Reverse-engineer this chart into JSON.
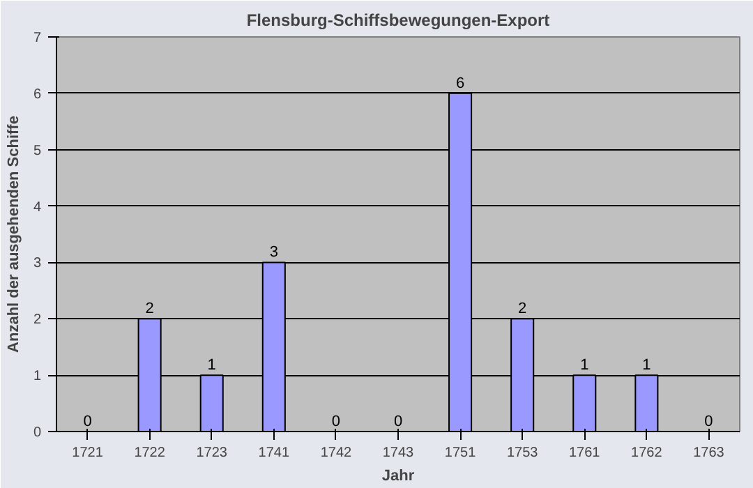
{
  "chart_data": {
    "type": "bar",
    "title": "Flensburg-Schiffsbewegungen-Export",
    "xlabel": "Jahr",
    "ylabel": "Anzahl der ausgehenden Schiffe",
    "categories": [
      "1721",
      "1722",
      "1723",
      "1741",
      "1742",
      "1743",
      "1751",
      "1753",
      "1761",
      "1762",
      "1763"
    ],
    "values": [
      0,
      2,
      1,
      3,
      0,
      0,
      6,
      2,
      1,
      1,
      0
    ],
    "color": "#9999ff",
    "ylim": [
      0,
      7
    ],
    "yticks": [
      0,
      1,
      2,
      3,
      4,
      5,
      6,
      7
    ],
    "grid": "y",
    "data_labels": true
  }
}
